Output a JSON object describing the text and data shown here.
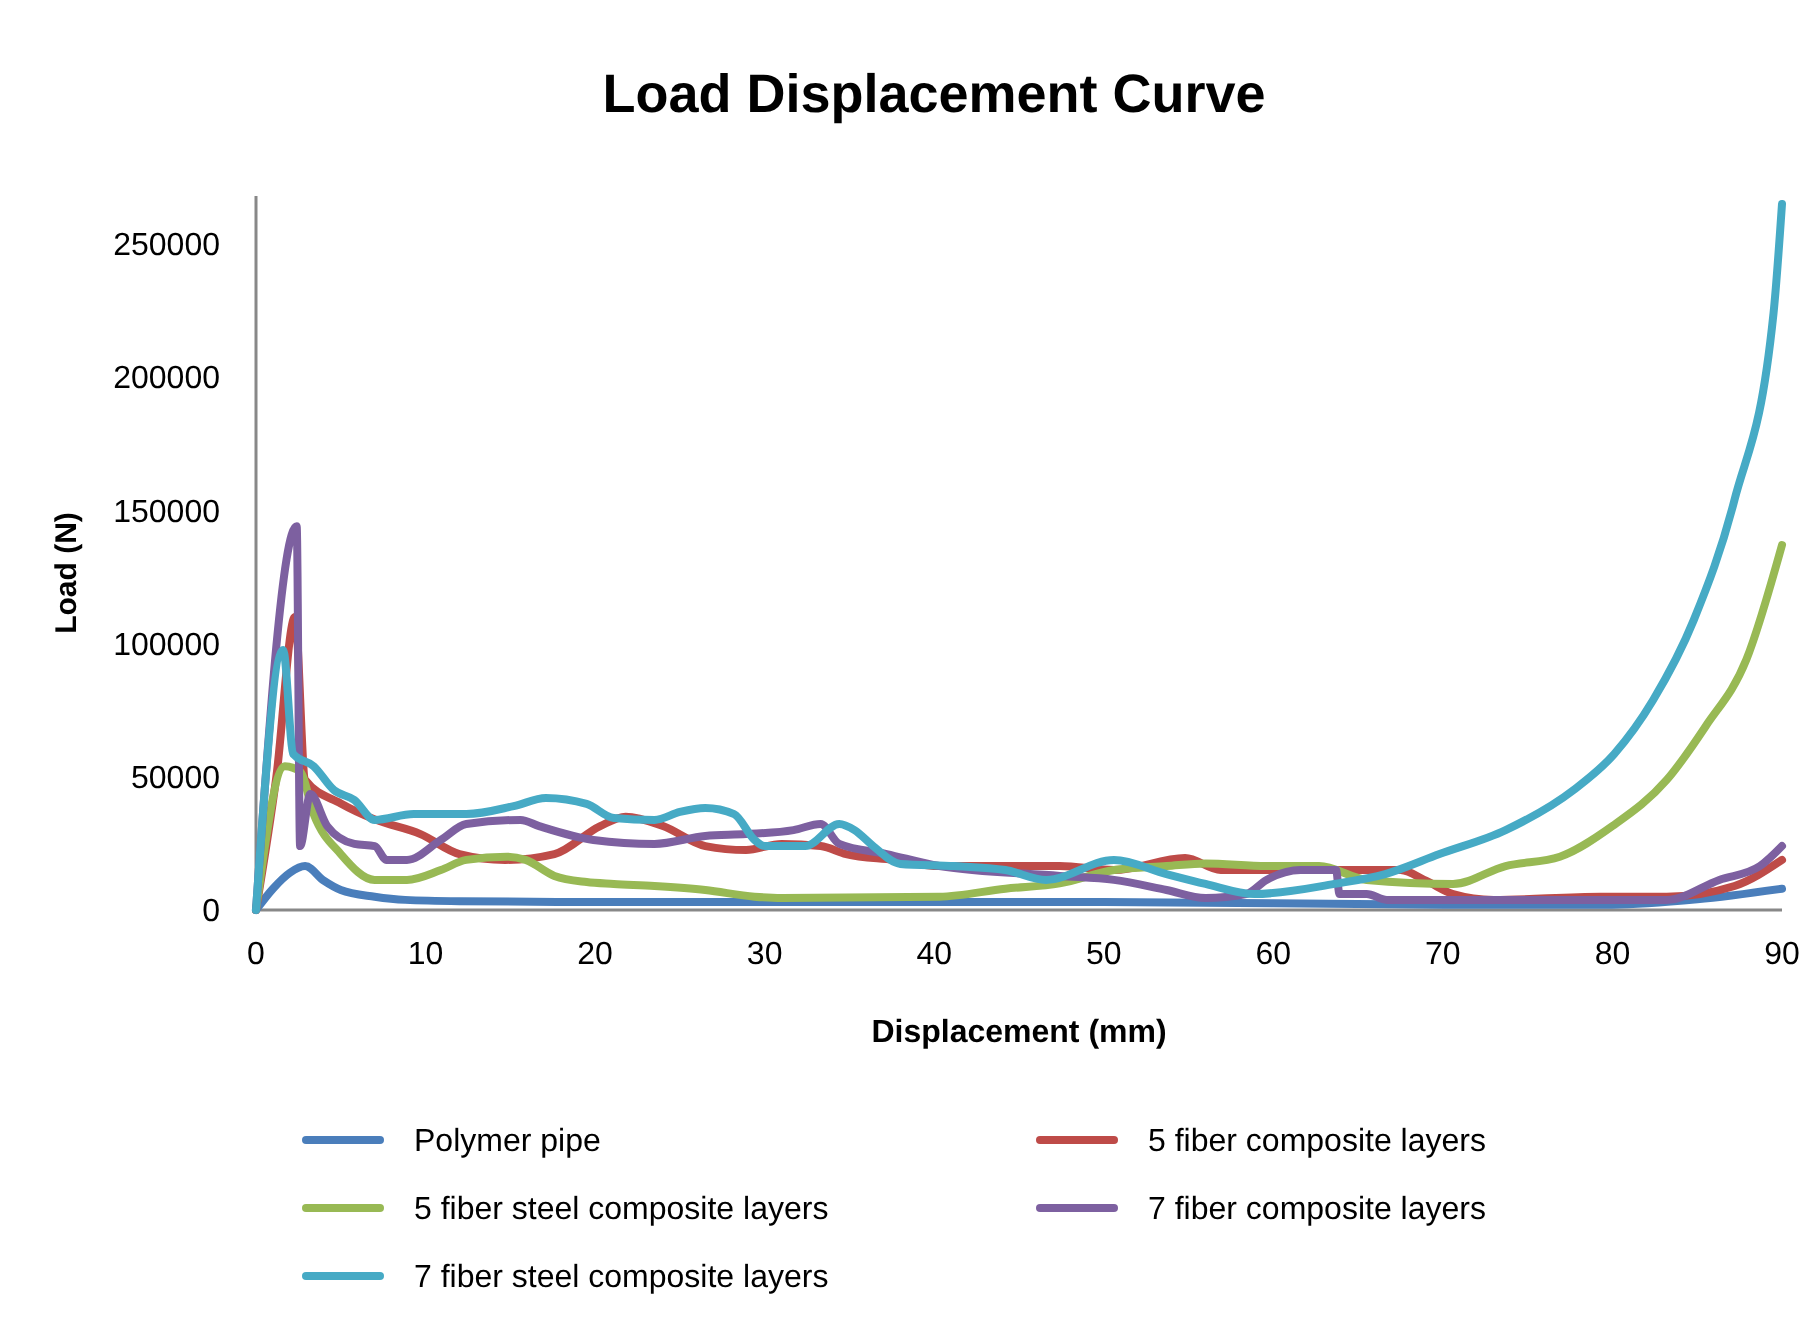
{
  "chart_data": {
    "type": "line",
    "title": "Load Displacement Curve",
    "xlabel": "Displacement (mm)",
    "ylabel": "Load (N)",
    "xlim": [
      0,
      90
    ],
    "xticks": [
      0,
      10,
      20,
      30,
      40,
      50,
      60,
      70,
      80,
      90
    ],
    "ylim": [
      0,
      268000
    ],
    "yticks": [
      0,
      50000,
      100000,
      150000,
      200000,
      250000
    ],
    "grid": false,
    "legend": "bottom",
    "marker": "none",
    "line_style": "solid",
    "series": [
      {
        "name": "Polymer pipe",
        "color": "#4a7ebb",
        "x": [
          0,
          1,
          2,
          2.9,
          4,
          5,
          7,
          8.8,
          12,
          20,
          30,
          40,
          50,
          60,
          70,
          80,
          85,
          90
        ],
        "values": [
          0,
          8000,
          14000,
          16500,
          11000,
          7500,
          5000,
          3800,
          3300,
          3000,
          3000,
          3000,
          3000,
          2500,
          2000,
          2000,
          4000,
          8000
        ]
      },
      {
        "name": "5 fiber composite layers",
        "color": "#be4b48",
        "x": [
          0,
          1.2,
          2.3,
          2.9,
          5,
          7,
          9.7,
          12,
          14.7,
          17.6,
          20.3,
          21.8,
          24,
          26.5,
          28.9,
          31,
          33.3,
          34.8,
          37.6,
          40.3,
          47.4,
          50.6,
          54.8,
          56.9,
          59.2,
          67.5,
          69,
          70.6,
          73,
          79.3,
          83.2,
          87.2,
          90
        ],
        "values": [
          0,
          50000,
          110000,
          48800,
          40000,
          34000,
          28500,
          21000,
          18800,
          21000,
          31500,
          35000,
          31500,
          24000,
          22500,
          24800,
          24000,
          21000,
          18800,
          16500,
          16500,
          15000,
          19500,
          15000,
          15000,
          15000,
          11000,
          6000,
          3800,
          5000,
          5000,
          9000,
          18800
        ]
      },
      {
        "name": "5 fiber steel composite layers",
        "color": "#98b954",
        "x": [
          0,
          1.7,
          2.6,
          3.4,
          5,
          7,
          8.9,
          10.9,
          12.4,
          14.8,
          15.9,
          17.6,
          19.5,
          21.1,
          23.5,
          26.5,
          29.4,
          31,
          40.3,
          44.2,
          47.4,
          50.6,
          53.7,
          56,
          59.6,
          62.7,
          65.5,
          70.6,
          73.7,
          76.9,
          80,
          83.2,
          85.5,
          87.9,
          90
        ],
        "values": [
          0,
          54000,
          52000,
          36000,
          21000,
          11300,
          11300,
          15000,
          18800,
          20000,
          18800,
          12800,
          10500,
          9800,
          9000,
          7500,
          5000,
          4500,
          5000,
          8000,
          10000,
          15000,
          16500,
          17500,
          16500,
          16500,
          11300,
          9800,
          16500,
          20000,
          31500,
          48800,
          69000,
          94000,
          137000
        ]
      },
      {
        "name": "7 fiber composite layers",
        "color": "#7d60a0",
        "x": [
          0,
          2.4,
          2.6,
          3.2,
          4.2,
          5.8,
          7,
          7.7,
          8.9,
          10.9,
          12.4,
          15.6,
          16.7,
          19.9,
          23.5,
          26.5,
          28.9,
          31.7,
          33.3,
          34.4,
          37.2,
          40.3,
          47.4,
          50.6,
          53.7,
          56,
          58.4,
          59.6,
          61.6,
          63.7,
          63.9,
          65.5,
          66.7,
          83.2,
          86.3,
          88.7,
          90
        ],
        "values": [
          0,
          144000,
          24000,
          43500,
          31500,
          24800,
          24000,
          18800,
          18800,
          26300,
          32300,
          33800,
          31500,
          26300,
          24800,
          27800,
          28500,
          30000,
          32300,
          24800,
          21000,
          16500,
          12800,
          11300,
          7500,
          4500,
          6000,
          11300,
          15000,
          15000,
          6000,
          6000,
          3800,
          3800,
          11300,
          16500,
          24000
        ]
      },
      {
        "name": "7 fiber steel composite layers",
        "color": "#46aac5",
        "x": [
          0,
          1.6,
          2.2,
          3.4,
          4.6,
          5.8,
          7,
          9.3,
          12.4,
          15.2,
          17.1,
          19.5,
          21.1,
          23.5,
          25,
          26.5,
          28.2,
          29.4,
          30,
          32.4,
          34.4,
          35.3,
          36.4,
          38,
          41.2,
          44.2,
          46.6,
          50.6,
          53.7,
          56,
          58.9,
          63.6,
          66.6,
          69.8,
          73.7,
          77.7,
          80.1,
          82.4,
          84.8,
          87.2,
          89.5,
          90
        ],
        "values": [
          0,
          97600,
          58500,
          54000,
          45000,
          41300,
          33800,
          36000,
          36000,
          39000,
          42000,
          39800,
          34500,
          33800,
          36800,
          38300,
          36000,
          26300,
          24000,
          24000,
          32300,
          30000,
          24000,
          17300,
          16500,
          15000,
          11300,
          18800,
          13500,
          9800,
          6000,
          9800,
          13500,
          21000,
          30000,
          45000,
          58500,
          78800,
          108900,
          154000,
          224000,
          265000
        ]
      }
    ]
  }
}
